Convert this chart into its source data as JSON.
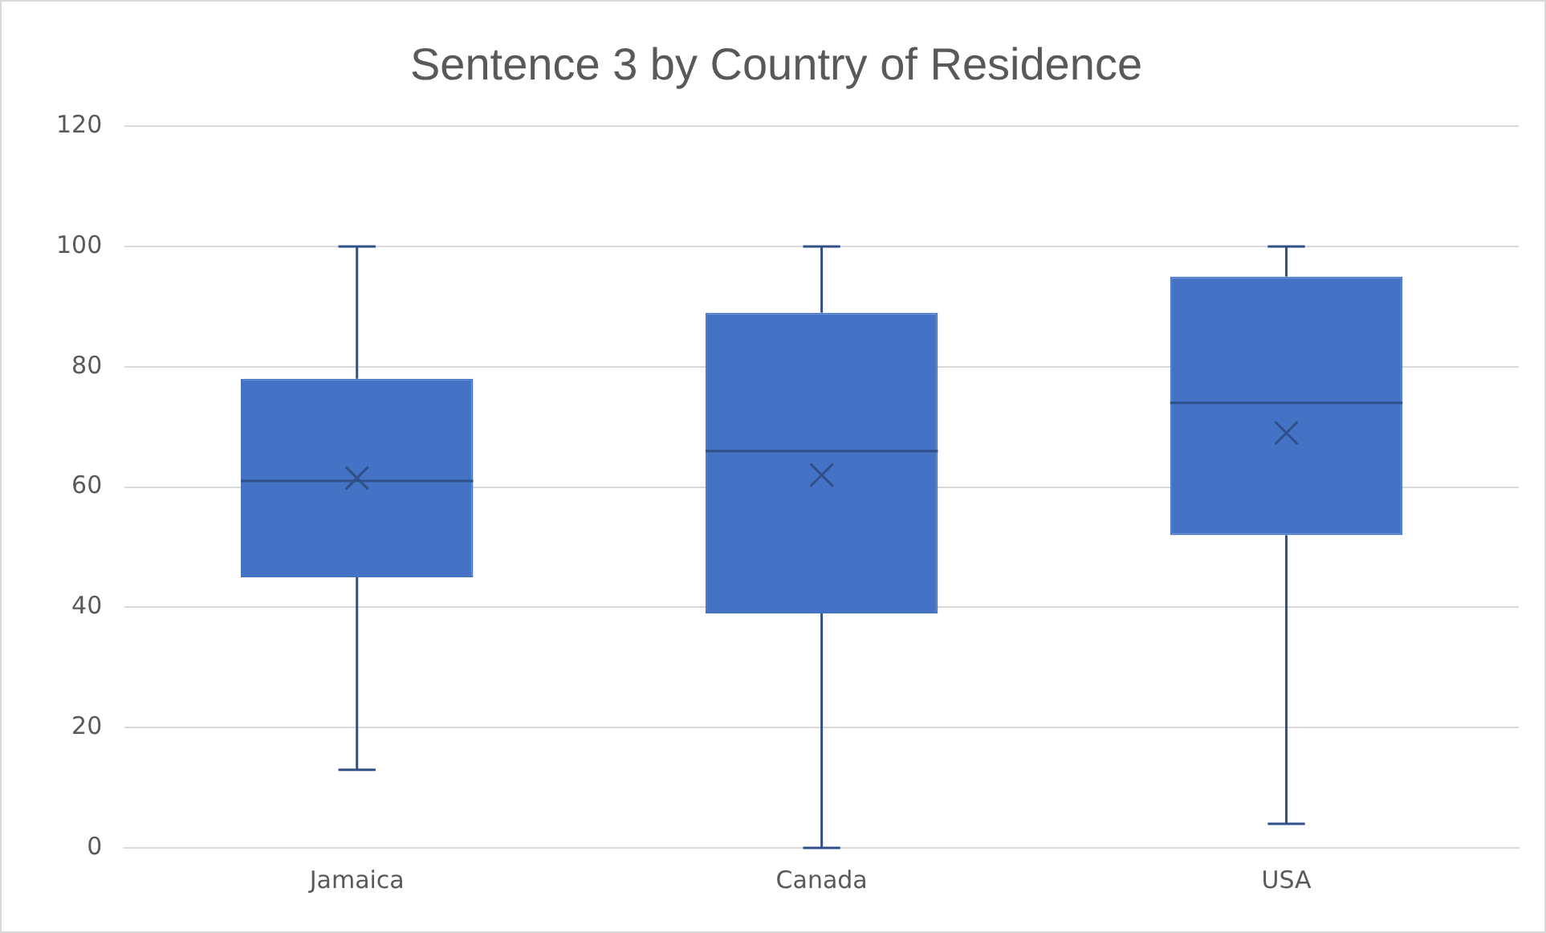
{
  "chart_data": {
    "type": "box",
    "title": "Sentence 3 by Country of Residence",
    "categories": [
      "Jamaica",
      "Canada",
      "USA"
    ],
    "color": "#4472c4",
    "ylim": [
      0,
      120
    ],
    "yticks": [
      0,
      20,
      40,
      60,
      80,
      100,
      120
    ],
    "grid": "y",
    "boxes": [
      {
        "low": 13,
        "q1": 45,
        "median": 61,
        "q3": 78,
        "high": 100,
        "mean": 61.5
      },
      {
        "low": 0,
        "q1": 39,
        "median": 66,
        "q3": 89,
        "high": 100,
        "mean": 62
      },
      {
        "low": 4,
        "q1": 52,
        "median": 74,
        "q3": 95,
        "high": 100,
        "mean": 69
      }
    ]
  }
}
